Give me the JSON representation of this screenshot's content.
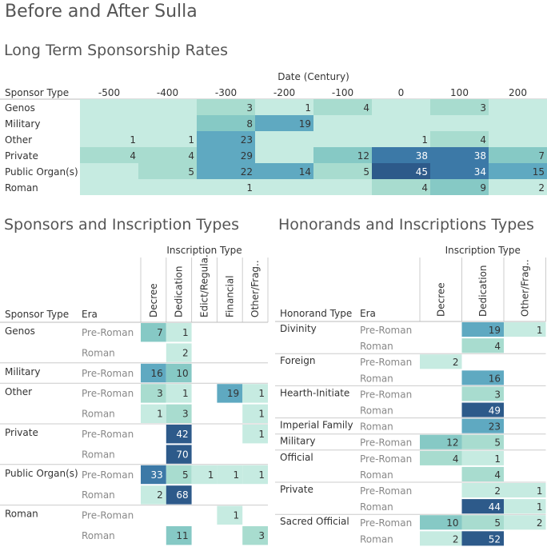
{
  "title": "Before and After Sulla",
  "colors": {
    "scale": [
      "#c6ebe1",
      "#a8dccf",
      "#86c9c5",
      "#5fa9c1",
      "#3c79a7",
      "#2d5a8a"
    ],
    "text_dark": "#333333",
    "text_light": "#ffffff",
    "divider": "#cccccc"
  },
  "chart_data": [
    {
      "type": "heatmap",
      "title": "Long Term Sponsorship Rates",
      "row_header": "Sponsor Type",
      "col_header": "Date (Century)",
      "fill_row_band": true,
      "columns": [
        "-500",
        "-400",
        "-300",
        "-200",
        "-100",
        "0",
        "100",
        "200"
      ],
      "rows": [
        {
          "label": "Genos",
          "values": [
            null,
            null,
            3,
            1,
            4,
            null,
            3,
            null
          ]
        },
        {
          "label": "Military",
          "values": [
            null,
            null,
            8,
            19,
            null,
            null,
            null,
            null
          ]
        },
        {
          "label": "Other",
          "values": [
            1,
            1,
            23,
            null,
            null,
            1,
            4,
            null
          ]
        },
        {
          "label": "Private",
          "values": [
            4,
            4,
            29,
            null,
            12,
            38,
            38,
            7
          ]
        },
        {
          "label": "Public Organ(s)",
          "values": [
            null,
            5,
            22,
            14,
            5,
            45,
            34,
            15
          ]
        },
        {
          "label": "Roman",
          "values": [
            null,
            null,
            1,
            null,
            null,
            4,
            9,
            2
          ]
        }
      ]
    },
    {
      "type": "heatmap",
      "title": "Sponsors and Inscription Types",
      "row_header": "Sponsor Type",
      "era_header": "Era",
      "col_header": "Inscription Type",
      "columns": [
        "Decree",
        "Dedication",
        "Edict/Regula..",
        "Financial",
        "Other/Frag.."
      ],
      "groups": [
        {
          "label": "Genos",
          "rows": [
            {
              "era": "Pre-Roman",
              "values": [
                7,
                1,
                null,
                null,
                null
              ]
            },
            {
              "era": "Roman",
              "values": [
                null,
                2,
                null,
                null,
                null
              ]
            }
          ]
        },
        {
          "label": "Military",
          "rows": [
            {
              "era": "Pre-Roman",
              "values": [
                16,
                10,
                null,
                null,
                null
              ]
            }
          ]
        },
        {
          "label": "Other",
          "rows": [
            {
              "era": "Pre-Roman",
              "values": [
                3,
                1,
                null,
                19,
                1
              ]
            },
            {
              "era": "Roman",
              "values": [
                1,
                3,
                null,
                null,
                1
              ]
            }
          ]
        },
        {
          "label": "Private",
          "rows": [
            {
              "era": "Pre-Roman",
              "values": [
                null,
                42,
                null,
                null,
                1
              ]
            },
            {
              "era": "Roman",
              "values": [
                null,
                70,
                null,
                null,
                null
              ]
            }
          ]
        },
        {
          "label": "Public Organ(s)",
          "rows": [
            {
              "era": "Pre-Roman",
              "values": [
                33,
                5,
                1,
                1,
                1
              ]
            },
            {
              "era": "Roman",
              "values": [
                2,
                68,
                null,
                null,
                null
              ]
            }
          ]
        },
        {
          "label": "Roman",
          "rows": [
            {
              "era": "Pre-Roman",
              "values": [
                null,
                null,
                null,
                1,
                null
              ]
            },
            {
              "era": "Roman",
              "values": [
                null,
                11,
                null,
                null,
                3
              ]
            }
          ]
        }
      ]
    },
    {
      "type": "heatmap",
      "title": "Honorands and Inscriptions Types",
      "row_header": "Honorand Type",
      "era_header": "Era",
      "col_header": "Inscription Type",
      "columns": [
        "Decree",
        "Dedication",
        "Other/Frag.."
      ],
      "groups": [
        {
          "label": "Divinity",
          "rows": [
            {
              "era": "Pre-Roman",
              "values": [
                null,
                19,
                1
              ]
            },
            {
              "era": "Roman",
              "values": [
                null,
                4,
                null
              ]
            }
          ]
        },
        {
          "label": "Foreign",
          "rows": [
            {
              "era": "Pre-Roman",
              "values": [
                2,
                null,
                null
              ]
            },
            {
              "era": "Roman",
              "values": [
                null,
                16,
                null
              ]
            }
          ]
        },
        {
          "label": "Hearth-Initiate",
          "rows": [
            {
              "era": "Pre-Roman",
              "values": [
                null,
                3,
                null
              ]
            },
            {
              "era": "Roman",
              "values": [
                null,
                49,
                null
              ]
            }
          ]
        },
        {
          "label": "Imperial Family",
          "rows": [
            {
              "era": "Roman",
              "values": [
                null,
                23,
                null
              ]
            }
          ]
        },
        {
          "label": "Military",
          "rows": [
            {
              "era": "Pre-Roman",
              "values": [
                12,
                5,
                null
              ]
            }
          ]
        },
        {
          "label": "Official",
          "rows": [
            {
              "era": "Pre-Roman",
              "values": [
                4,
                1,
                null
              ]
            },
            {
              "era": "Roman",
              "values": [
                null,
                4,
                null
              ]
            }
          ]
        },
        {
          "label": "Private",
          "rows": [
            {
              "era": "Pre-Roman",
              "values": [
                null,
                2,
                1
              ]
            },
            {
              "era": "Roman",
              "values": [
                null,
                44,
                1
              ]
            }
          ]
        },
        {
          "label": "Sacred Official",
          "rows": [
            {
              "era": "Pre-Roman",
              "values": [
                10,
                5,
                2
              ]
            },
            {
              "era": "Roman",
              "values": [
                2,
                52,
                null
              ]
            }
          ]
        }
      ]
    }
  ]
}
